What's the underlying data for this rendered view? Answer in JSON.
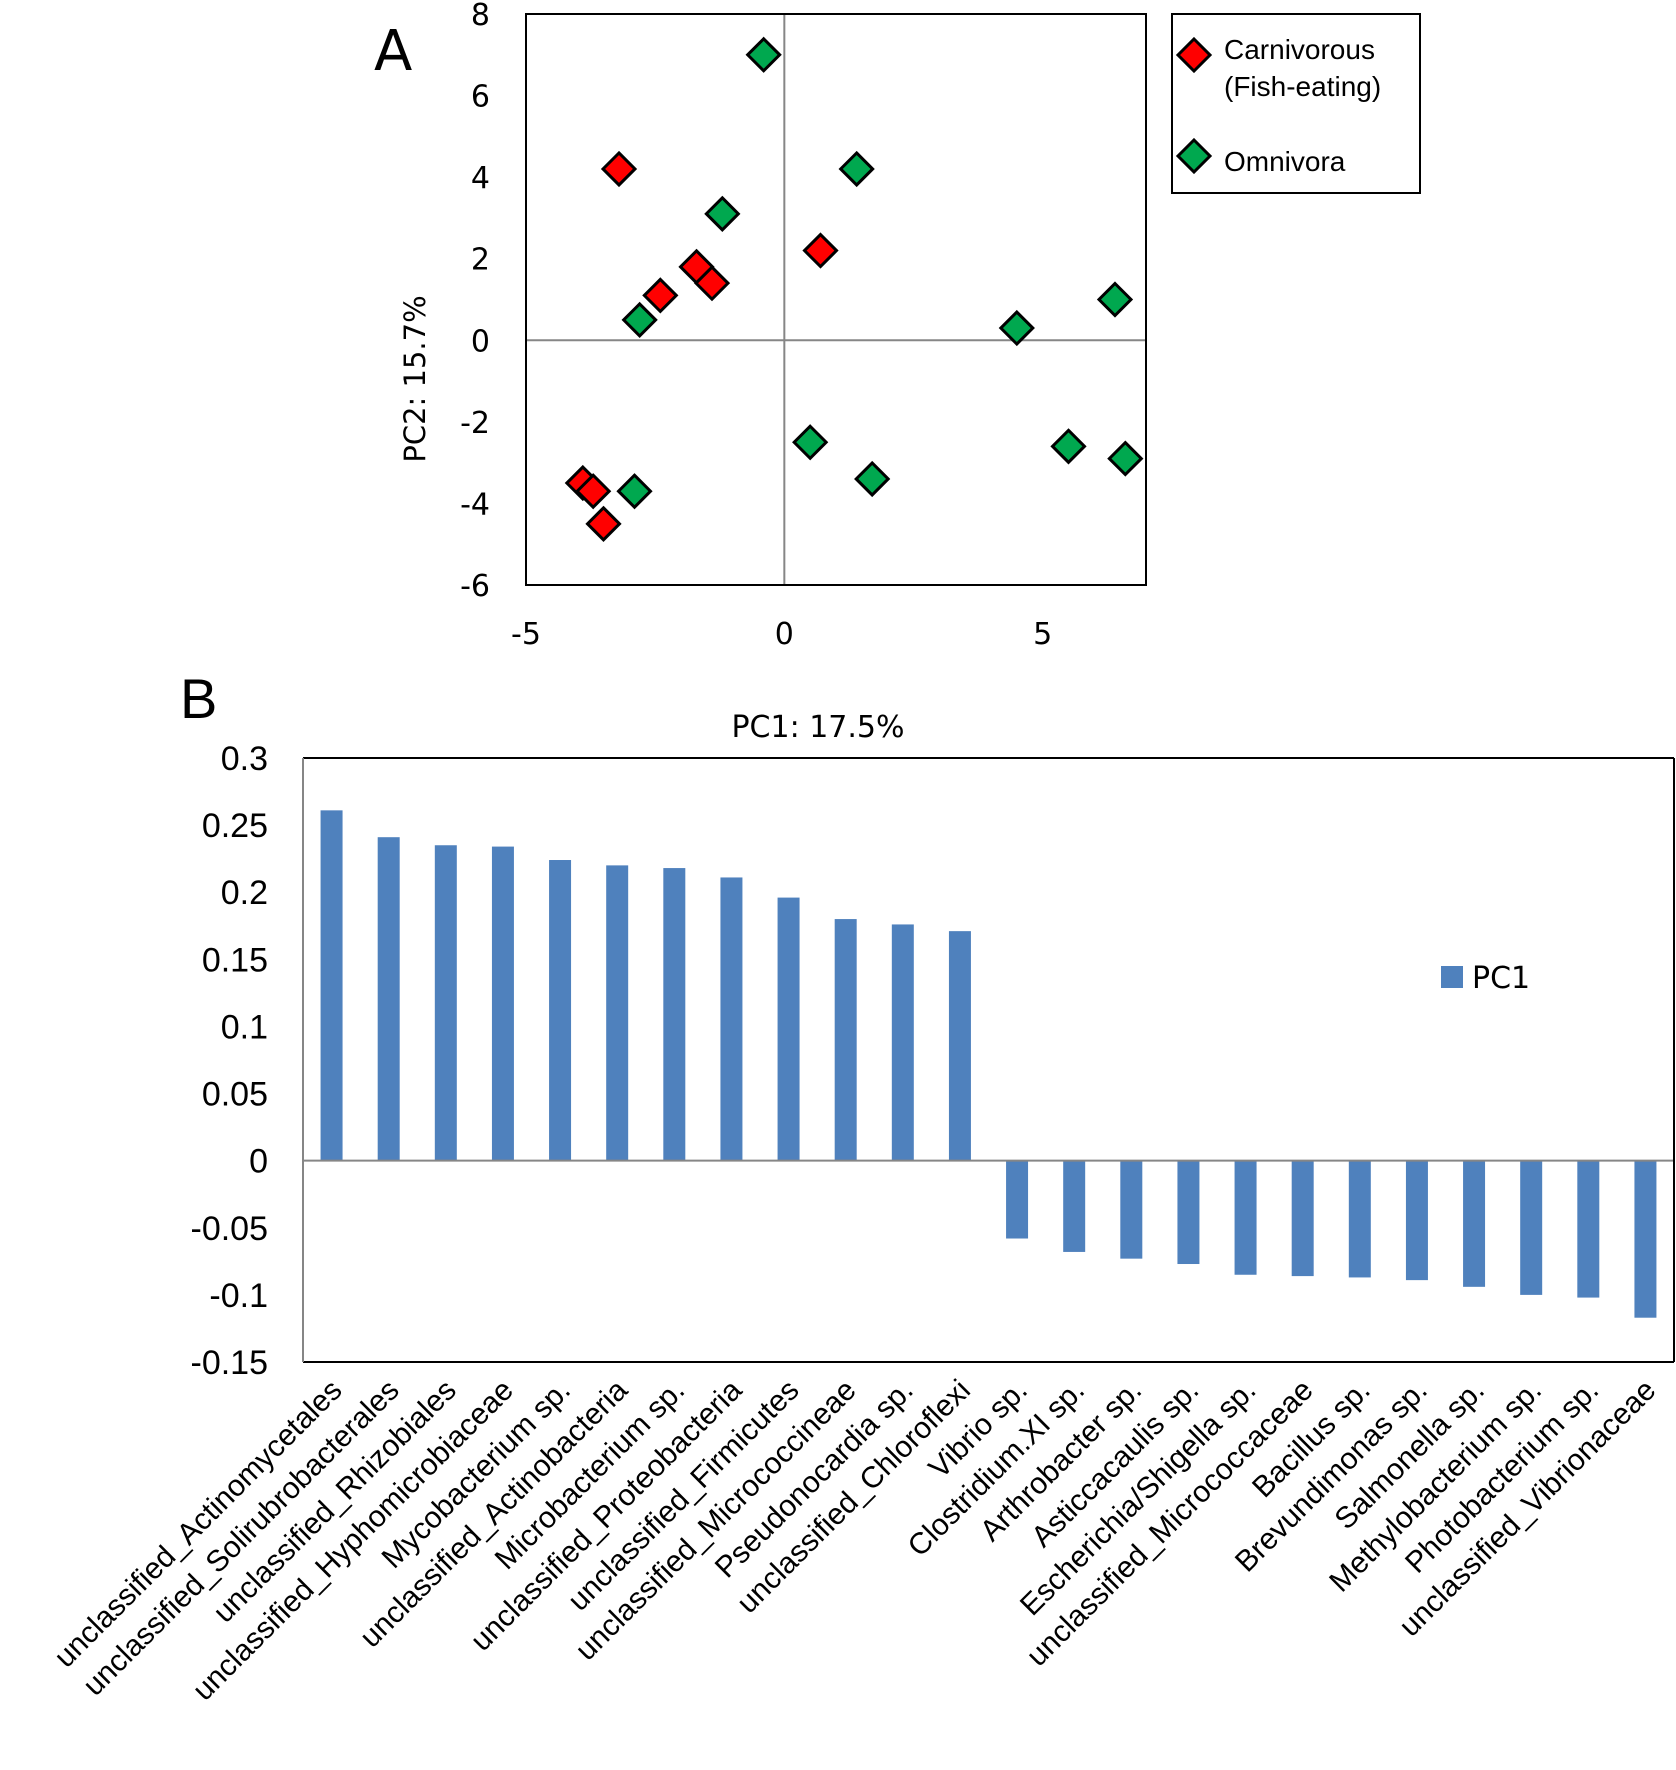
{
  "figure": {
    "panel_a_label": "A",
    "panel_b_label": "B"
  },
  "colors": {
    "carnivorous": "#ff0000",
    "omnivora": "#00a84f",
    "bar": "#4f81bd",
    "marker_outline": "#000000",
    "zero_line": "#868686"
  },
  "chart_data": [
    {
      "type": "scatter",
      "title": "",
      "xlabel": "",
      "ylabel": "PC2: 15.7%",
      "xlim": [
        -5,
        7
      ],
      "ylim": [
        -6,
        8
      ],
      "x_ticks": [
        "-5",
        "0",
        "5"
      ],
      "x_tick_values": [
        -5,
        0,
        5
      ],
      "y_ticks": [
        "8",
        "6",
        "4",
        "2",
        "0",
        "-2",
        "-4",
        "-6"
      ],
      "y_tick_values": [
        8,
        6,
        4,
        2,
        0,
        -2,
        -4,
        -6
      ],
      "grid": false,
      "zero_lines": true,
      "legend_position": "top-right-outside",
      "series": [
        {
          "name": "Carnivorous (Fish-eating)",
          "legend_lines": [
            "Carnivorous",
            "(Fish-eating)"
          ],
          "marker": "diamond",
          "color_key": "carnivorous",
          "points": [
            {
              "x": -3.2,
              "y": 4.2
            },
            {
              "x": -2.4,
              "y": 1.1
            },
            {
              "x": -1.7,
              "y": 1.8
            },
            {
              "x": -1.4,
              "y": 1.4
            },
            {
              "x": 0.7,
              "y": 2.2
            },
            {
              "x": -3.9,
              "y": -3.5
            },
            {
              "x": -3.7,
              "y": -3.7
            },
            {
              "x": -3.5,
              "y": -4.5
            }
          ]
        },
        {
          "name": "Omnivora",
          "legend_lines": [
            "Omnivora"
          ],
          "marker": "diamond",
          "color_key": "omnivora",
          "points": [
            {
              "x": -0.4,
              "y": 7.0
            },
            {
              "x": 1.4,
              "y": 4.2
            },
            {
              "x": -1.2,
              "y": 3.1
            },
            {
              "x": -2.8,
              "y": 0.5
            },
            {
              "x": 4.5,
              "y": 0.3
            },
            {
              "x": 6.4,
              "y": 1.0
            },
            {
              "x": 0.5,
              "y": -2.5
            },
            {
              "x": 1.7,
              "y": -3.4
            },
            {
              "x": 5.5,
              "y": -2.6
            },
            {
              "x": 6.6,
              "y": -2.9
            },
            {
              "x": -2.9,
              "y": -3.7
            }
          ]
        }
      ]
    },
    {
      "type": "bar",
      "title": "PC1: 17.5%",
      "xlabel": "",
      "ylabel": "",
      "ylim": [
        -0.15,
        0.3
      ],
      "y_ticks": [
        "0.3",
        "0.25",
        "0.2",
        "0.15",
        "0.1",
        "0.05",
        "0",
        "-0.05",
        "-0.1",
        "-0.15"
      ],
      "y_tick_values": [
        0.3,
        0.25,
        0.2,
        0.15,
        0.1,
        0.05,
        0,
        -0.05,
        -0.1,
        -0.15
      ],
      "grid": false,
      "legend_position": "right",
      "series": [
        {
          "name": "PC1",
          "values": [
            0.261,
            0.241,
            0.235,
            0.234,
            0.224,
            0.22,
            0.218,
            0.211,
            0.196,
            0.18,
            0.176,
            0.171,
            -0.058,
            -0.068,
            -0.073,
            -0.077,
            -0.085,
            -0.086,
            -0.087,
            -0.089,
            -0.094,
            -0.1,
            -0.102,
            -0.117
          ]
        }
      ],
      "categories": [
        "unclassified_Actinomycetales",
        "unclassified_Solirubrobacterales",
        "unclassified_Rhizobiales",
        "unclassified_Hyphomicrobiaceae",
        "Mycobacterium sp.",
        "unclassified_Actinobacteria",
        "Microbacterium sp.",
        "unclassified_Proteobacteria",
        "unclassified_Firmicutes",
        "unclassified_Micrococcineae",
        "Pseudonocardia sp.",
        "unclassified_Chloroflexi",
        "Vibrio sp.",
        "Clostridium.XI sp.",
        "Arthrobacter sp.",
        "Asticcacaulis sp.",
        "Escherichia/Shigella sp.",
        "unclassified_Micrococcaceae",
        "Bacillus sp.",
        "Brevundimonas sp.",
        "Salmonella sp.",
        "Methylobacterium sp.",
        "Photobacterium sp.",
        "unclassified_Vibrionaceae"
      ]
    }
  ]
}
